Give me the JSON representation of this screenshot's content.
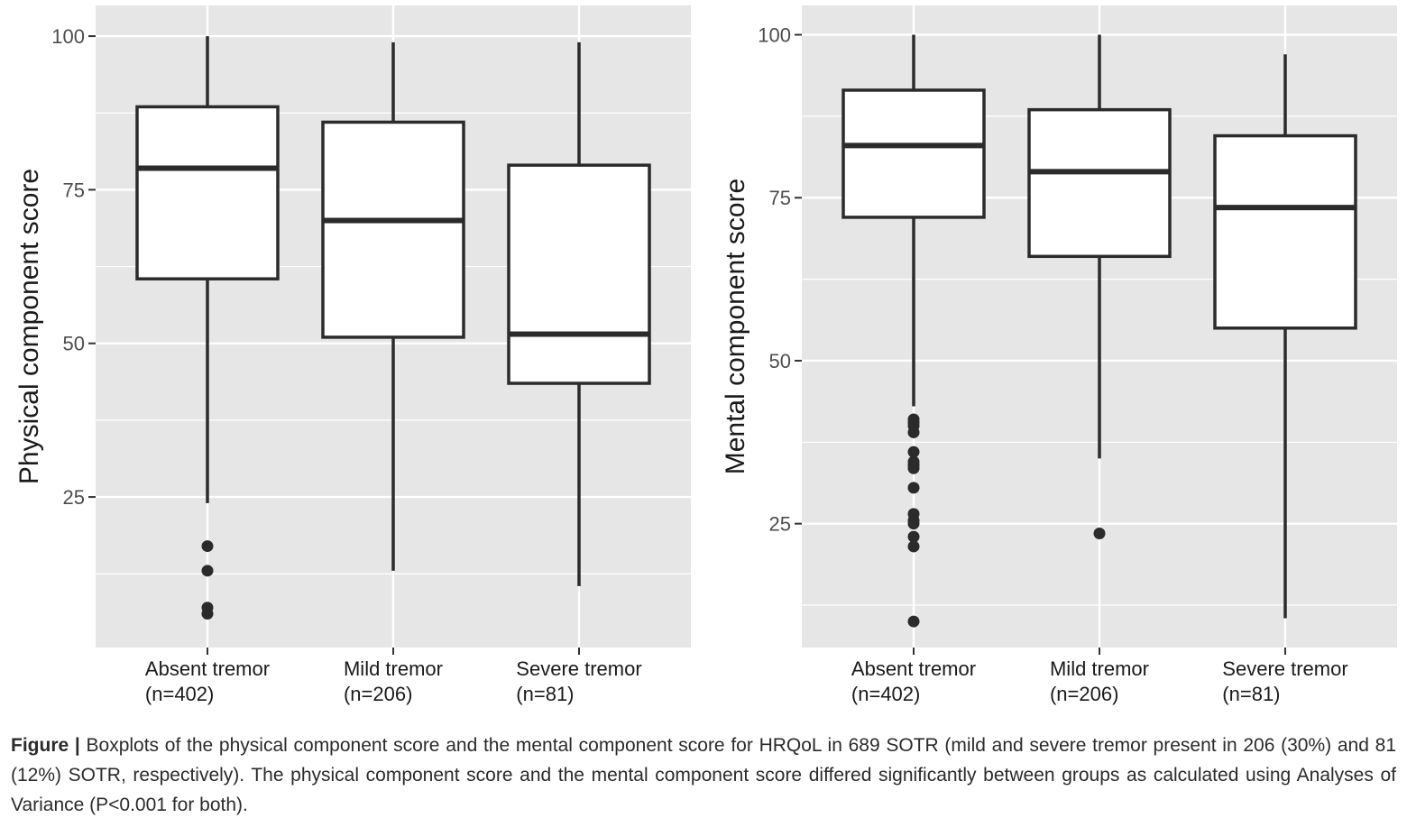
{
  "chart_data": [
    {
      "type": "boxplot",
      "ylabel": "Physical component score",
      "xlabel": "",
      "ylim": [
        0.5,
        105
      ],
      "yticks": [
        25,
        50,
        75,
        100
      ],
      "grid": true,
      "categories": [
        {
          "label": "Absent tremor",
          "n": "(n=402)",
          "whisker_low": 24,
          "q1": 60.5,
          "median": 78.5,
          "q3": 88.5,
          "whisker_high": 100,
          "outliers": [
            17,
            13,
            7,
            6
          ]
        },
        {
          "label": "Mild tremor",
          "n": "(n=206)",
          "whisker_low": 13,
          "q1": 51,
          "median": 70,
          "q3": 86,
          "whisker_high": 99,
          "outliers": []
        },
        {
          "label": "Severe tremor",
          "n": "(n=81)",
          "whisker_low": 10.5,
          "q1": 43.5,
          "median": 51.5,
          "q3": 79,
          "whisker_high": 99,
          "outliers": []
        }
      ]
    },
    {
      "type": "boxplot",
      "ylabel": "Mental component score",
      "xlabel": "",
      "ylim": [
        6,
        104.5
      ],
      "yticks": [
        25,
        50,
        75,
        100
      ],
      "grid": true,
      "categories": [
        {
          "label": "Absent tremor",
          "n": "(n=402)",
          "whisker_low": 43,
          "q1": 72,
          "median": 83,
          "q3": 91.5,
          "whisker_high": 100,
          "outliers": [
            41,
            40.5,
            40,
            39,
            36,
            34.5,
            34,
            33.5,
            30.5,
            26.5,
            25.5,
            25,
            23,
            21.5,
            10
          ]
        },
        {
          "label": "Mild tremor",
          "n": "(n=206)",
          "whisker_low": 35,
          "q1": 66,
          "median": 79,
          "q3": 88.5,
          "whisker_high": 100,
          "outliers": [
            23.5
          ]
        },
        {
          "label": "Severe tremor",
          "n": "(n=81)",
          "whisker_low": 10.5,
          "q1": 55,
          "median": 73.5,
          "q3": 84.5,
          "whisker_high": 97,
          "outliers": []
        }
      ]
    }
  ],
  "caption": {
    "label": "Figure |",
    "text": " Boxplots of the physical component score and the mental component score for HRQoL in 689 SOTR (mild and severe tremor present in 206 (30%) and 81 (12%) SOTR, respectively). The physical component score and the mental component score differed significantly between groups as calculated using Analyses of Variance (P<0.001 for both)."
  },
  "colors": {
    "panel_bg": "#e6e6e6",
    "grid": "#ffffff",
    "box_fill": "#ffffff",
    "box_stroke": "#2b2b2b",
    "axis_text": "#4d4d4d",
    "title_text": "#1a1a1a"
  }
}
